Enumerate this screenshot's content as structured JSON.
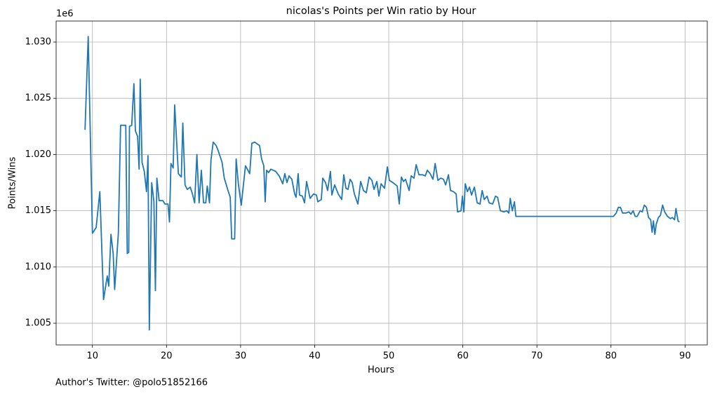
{
  "chart_data": {
    "type": "line",
    "title": "nicolas's Points per Win ratio by Hour",
    "x_label": "Hours",
    "y_label": "Points/Wins",
    "y_offset_label": "1e6",
    "footer": "Author's Twitter: @polo51852166",
    "color": "#1f77b4",
    "grid": true,
    "xlim": [
      5.1,
      93.0
    ],
    "xticks": [
      10,
      20,
      30,
      40,
      50,
      60,
      70,
      80,
      90
    ],
    "ylim": [
      1.00307,
      1.03187
    ],
    "yticks": [
      1.005,
      {
        "value": 1.01,
        "label": "1.010"
      },
      1.015,
      {
        "value": 1.02,
        "label": "1.020"
      },
      1.025,
      {
        "value": 1.03,
        "label": "1.030"
      }
    ],
    "x": [
      9.0,
      9.43,
      10.0,
      10.5,
      11.0,
      11.5,
      12.0,
      12.2,
      12.5,
      12.8,
      13.0,
      13.5,
      13.8,
      14.5,
      14.7,
      14.9,
      15.0,
      15.3,
      15.6,
      15.8,
      16.1,
      16.3,
      16.45,
      16.7,
      17.0,
      17.3,
      17.5,
      17.68,
      18.0,
      18.3,
      18.5,
      18.7,
      19.0,
      19.5,
      19.8,
      20.2,
      20.4,
      20.6,
      20.9,
      21.1,
      21.6,
      22.0,
      22.2,
      22.5,
      22.8,
      23.2,
      23.5,
      23.8,
      24.1,
      24.4,
      24.7,
      25.0,
      25.3,
      25.5,
      25.8,
      26.0,
      26.3,
      26.7,
      27.0,
      27.5,
      27.8,
      28.3,
      28.6,
      28.8,
      29.2,
      29.4,
      29.7,
      30.09,
      30.66,
      31.23,
      31.52,
      31.9,
      32.56,
      32.84,
      33.13,
      33.32,
      33.51,
      33.79,
      34.08,
      34.74,
      35.21,
      35.69,
      35.97,
      36.26,
      36.54,
      36.92,
      37.3,
      37.49,
      37.77,
      37.96,
      38.34,
      38.63,
      38.91,
      39.38,
      39.86,
      40.24,
      40.43,
      40.9,
      41.09,
      41.47,
      41.75,
      42.13,
      42.32,
      42.7,
      43.18,
      43.65,
      43.93,
      44.22,
      44.5,
      44.79,
      45.07,
      45.36,
      45.83,
      46.21,
      46.59,
      46.97,
      47.35,
      47.73,
      48.01,
      48.39,
      48.67,
      48.96,
      49.43,
      49.81,
      50.09,
      50.57,
      51.14,
      51.42,
      51.71,
      51.99,
      52.27,
      52.75,
      53.03,
      53.41,
      53.7,
      54.08,
      54.55,
      54.93,
      55.21,
      55.59,
      55.97,
      56.26,
      56.64,
      57.01,
      57.39,
      57.68,
      58.06,
      58.34,
      58.72,
      59.1,
      59.29,
      59.76,
      59.95,
      60.14,
      60.33,
      60.62,
      60.9,
      61.18,
      61.56,
      61.94,
      62.32,
      62.61,
      62.89,
      63.27,
      63.55,
      64.03,
      64.41,
      64.69,
      65.07,
      65.55,
      65.92,
      66.21,
      66.4,
      66.68,
      66.97,
      67.16,
      80.33,
      80.71,
      80.99,
      81.28,
      81.56,
      82.04,
      82.42,
      82.7,
      82.99,
      83.27,
      83.55,
      83.93,
      84.22,
      84.5,
      84.79,
      85.07,
      85.36,
      85.55,
      85.73,
      85.92,
      86.11,
      86.4,
      86.68,
      86.97,
      87.25,
      87.63,
      88.01,
      88.29,
      88.58,
      88.77,
      89.05,
      89.24
    ],
    "values": [
      1.0222,
      1.0305,
      1.013,
      1.0135,
      1.0167,
      1.0071,
      1.0092,
      1.0083,
      1.0129,
      1.0112,
      1.008,
      1.013,
      1.0226,
      1.0226,
      1.0112,
      1.0113,
      1.0225,
      1.0226,
      1.0263,
      1.0221,
      1.0216,
      1.0187,
      1.0267,
      1.0193,
      1.0185,
      1.0167,
      1.0199,
      1.0044,
      1.0175,
      1.0158,
      1.0079,
      1.0179,
      1.0159,
      1.0159,
      1.0156,
      1.0156,
      1.014,
      1.0192,
      1.0188,
      1.0244,
      1.0183,
      1.018,
      1.0228,
      1.0173,
      1.0169,
      1.0171,
      1.0165,
      1.0157,
      1.02,
      1.0157,
      1.0186,
      1.0157,
      1.0157,
      1.0172,
      1.0157,
      1.0195,
      1.0211,
      1.0208,
      1.0203,
      1.0193,
      1.0179,
      1.0168,
      1.0162,
      1.0125,
      1.0125,
      1.0196,
      1.0174,
      1.0155,
      1.019,
      1.0183,
      1.021,
      1.0211,
      1.0208,
      1.0196,
      1.019,
      1.0158,
      1.0186,
      1.0184,
      1.0187,
      1.0185,
      1.0181,
      1.0174,
      1.0183,
      1.0175,
      1.0181,
      1.0178,
      1.0165,
      1.0162,
      1.0183,
      1.0164,
      1.0163,
      1.0157,
      1.0176,
      1.0161,
      1.0165,
      1.0164,
      1.0158,
      1.016,
      1.0179,
      1.0175,
      1.0168,
      1.0185,
      1.0164,
      1.0173,
      1.0165,
      1.016,
      1.0182,
      1.017,
      1.0169,
      1.0178,
      1.0175,
      1.0165,
      1.0156,
      1.0176,
      1.0168,
      1.0166,
      1.018,
      1.0177,
      1.0169,
      1.0176,
      1.0163,
      1.0174,
      1.017,
      1.0189,
      1.0177,
      1.0175,
      1.0172,
      1.0156,
      1.018,
      1.0176,
      1.0178,
      1.0168,
      1.0181,
      1.0179,
      1.0191,
      1.0182,
      1.0182,
      1.0181,
      1.0186,
      1.0183,
      1.0178,
      1.0192,
      1.0177,
      1.0179,
      1.0178,
      1.0173,
      1.0182,
      1.0168,
      1.0167,
      1.0165,
      1.0149,
      1.015,
      1.0163,
      1.0149,
      1.0174,
      1.0167,
      1.0171,
      1.0164,
      1.0171,
      1.0157,
      1.0156,
      1.0168,
      1.016,
      1.0163,
      1.0157,
      1.0156,
      1.0163,
      1.0162,
      1.015,
      1.0149,
      1.015,
      1.0148,
      1.0161,
      1.015,
      1.0158,
      1.0145,
      1.0145,
      1.0148,
      1.0153,
      1.0153,
      1.0148,
      1.0148,
      1.0149,
      1.0147,
      1.015,
      1.0145,
      1.0145,
      1.015,
      1.0149,
      1.0155,
      1.0153,
      1.0144,
      1.0142,
      1.0131,
      1.0141,
      1.0129,
      1.0138,
      1.0144,
      1.0146,
      1.0155,
      1.0149,
      1.0145,
      1.0143,
      1.0144,
      1.0142,
      1.0152,
      1.0141,
      1.014
    ]
  }
}
